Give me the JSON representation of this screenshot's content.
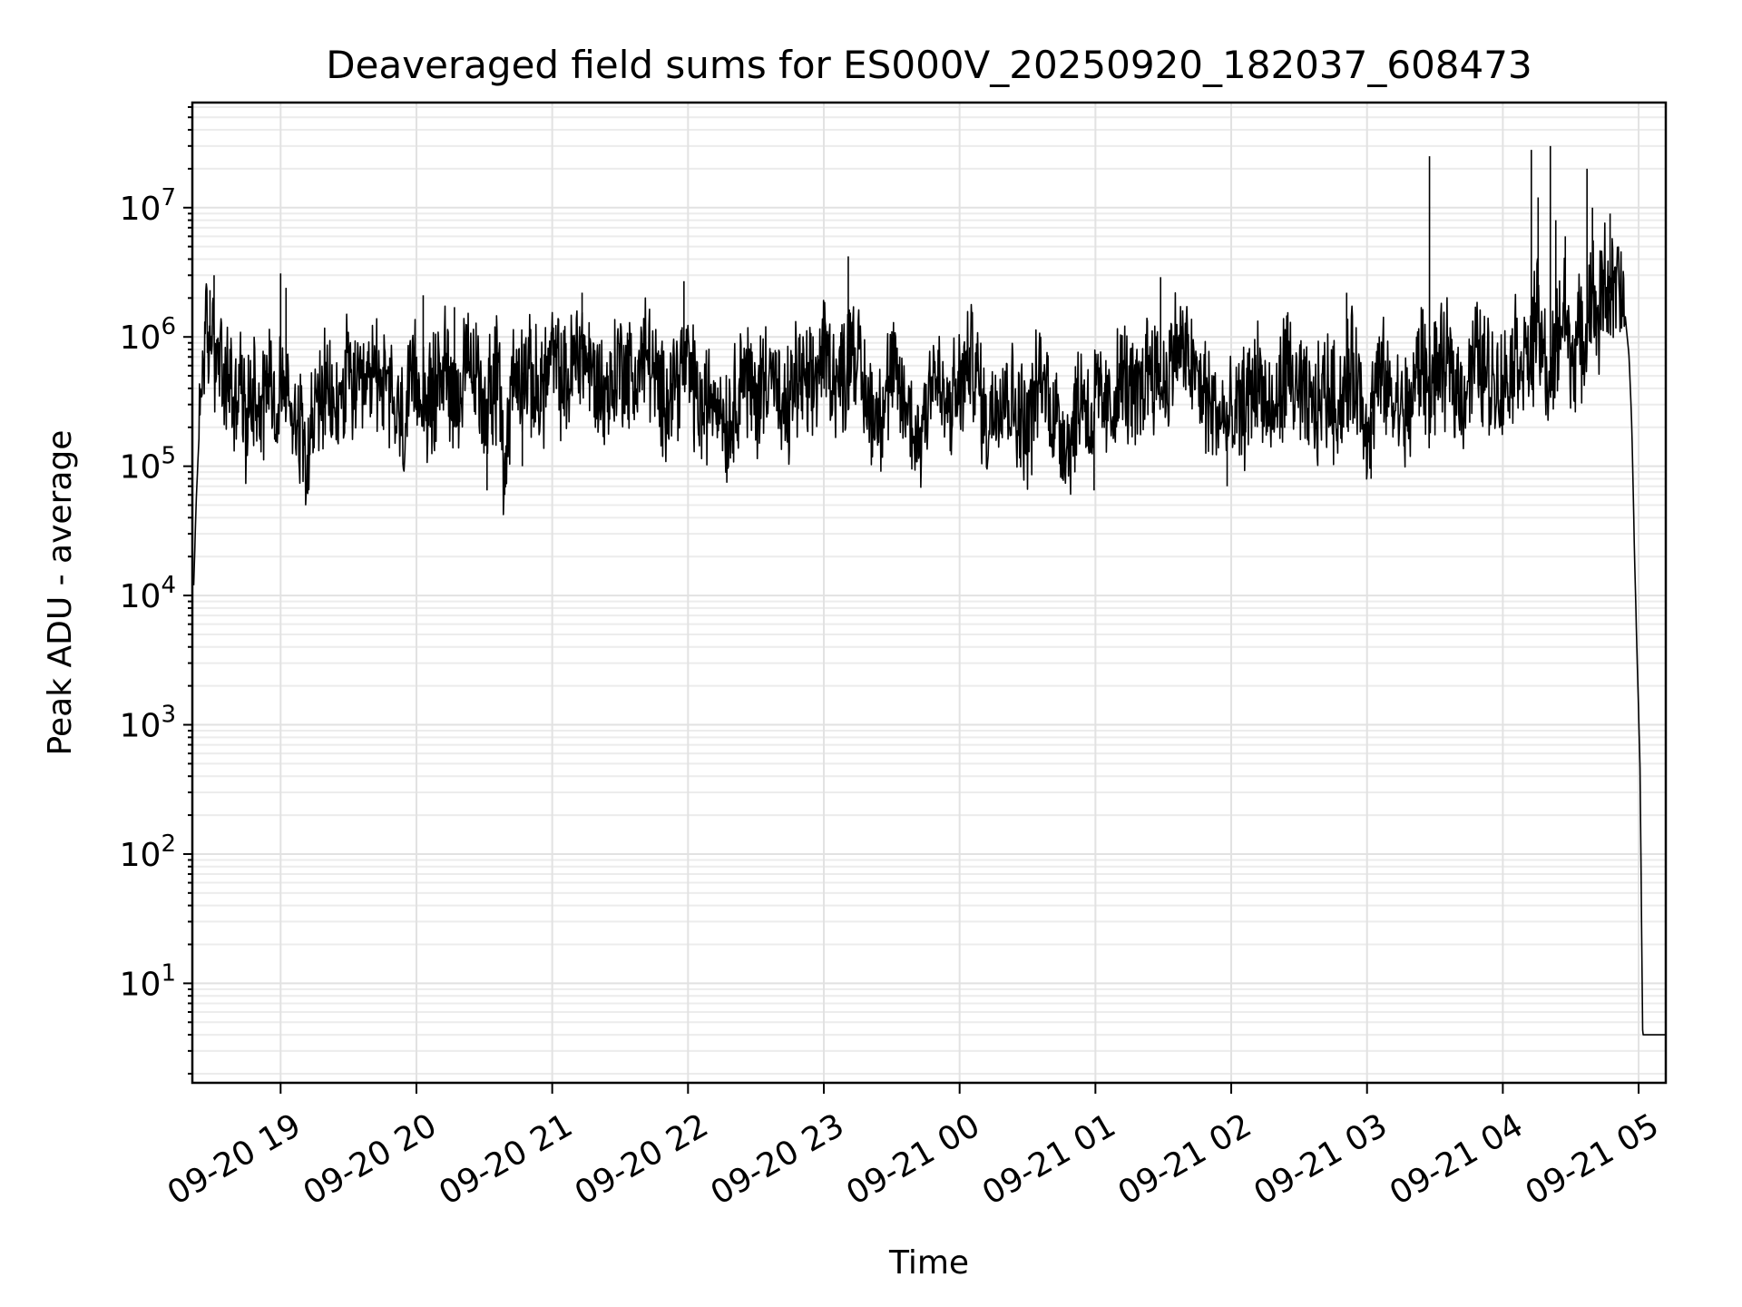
{
  "chart_data": {
    "type": "line",
    "title": "Deaveraged field sums for ES000V_20250920_182037_608473",
    "xlabel": "Time",
    "ylabel": "Peak ADU - average",
    "y_scale": "log",
    "ylim": [
      1.7,
      65000000
    ],
    "xlim": [
      18.35,
      29.2
    ],
    "x_ticks": [
      {
        "value": 19,
        "label": "09-20 19"
      },
      {
        "value": 20,
        "label": "09-20 20"
      },
      {
        "value": 21,
        "label": "09-20 21"
      },
      {
        "value": 22,
        "label": "09-20 22"
      },
      {
        "value": 23,
        "label": "09-20 23"
      },
      {
        "value": 24,
        "label": "09-21 00"
      },
      {
        "value": 25,
        "label": "09-21 01"
      },
      {
        "value": 26,
        "label": "09-21 02"
      },
      {
        "value": 27,
        "label": "09-21 03"
      },
      {
        "value": 28,
        "label": "09-21 04"
      },
      {
        "value": 29,
        "label": "09-21 05"
      }
    ],
    "y_ticks": [
      {
        "value": 10,
        "base": "10",
        "exp": "1"
      },
      {
        "value": 100,
        "base": "10",
        "exp": "2"
      },
      {
        "value": 1000,
        "base": "10",
        "exp": "3"
      },
      {
        "value": 10000,
        "base": "10",
        "exp": "4"
      },
      {
        "value": 100000,
        "base": "10",
        "exp": "5"
      },
      {
        "value": 1000000,
        "base": "10",
        "exp": "6"
      },
      {
        "value": 10000000,
        "base": "10",
        "exp": "7"
      }
    ],
    "grid": true,
    "series": [
      {
        "name": "deaveraged field sum",
        "color": "#000000",
        "x": [
          18.36,
          18.38,
          18.41,
          18.44,
          18.47,
          18.5,
          18.53,
          18.55,
          18.58,
          18.62,
          18.66,
          18.7,
          18.74,
          18.8,
          18.86,
          18.92,
          18.98,
          19.0,
          19.05,
          19.12,
          19.2,
          19.3,
          19.4,
          19.5,
          19.6,
          19.7,
          19.8,
          19.9,
          20.0,
          20.1,
          20.2,
          20.3,
          20.4,
          20.5,
          20.6,
          20.65,
          20.7,
          20.8,
          20.9,
          21.0,
          21.1,
          21.2,
          21.3,
          21.4,
          21.5,
          21.6,
          21.7,
          21.8,
          21.9,
          22.0,
          22.1,
          22.2,
          22.3,
          22.4,
          22.5,
          22.6,
          22.7,
          22.8,
          22.9,
          23.0,
          23.1,
          23.18,
          23.2,
          23.3,
          23.4,
          23.5,
          23.6,
          23.7,
          23.8,
          23.9,
          24.0,
          24.1,
          24.2,
          24.3,
          24.4,
          24.5,
          24.6,
          24.7,
          24.8,
          24.9,
          24.98,
          25.0,
          25.1,
          25.2,
          25.3,
          25.4,
          25.5,
          25.6,
          25.7,
          25.8,
          25.9,
          26.0,
          26.1,
          26.2,
          26.3,
          26.4,
          26.5,
          26.6,
          26.7,
          26.8,
          26.9,
          27.0,
          27.1,
          27.2,
          27.3,
          27.4,
          27.45,
          27.5,
          27.6,
          27.7,
          27.8,
          27.9,
          28.0,
          28.1,
          28.2,
          28.25,
          28.3,
          28.35,
          28.4,
          28.45,
          28.5,
          28.55,
          28.6,
          28.65,
          28.7,
          28.75,
          28.8,
          28.85,
          28.9,
          28.93,
          28.95,
          28.97,
          28.99,
          29.01,
          29.03,
          29.05,
          29.08,
          29.1,
          29.12,
          29.15,
          29.18,
          29.2
        ],
        "y": [
          12000,
          60000,
          300000,
          1200000,
          700000,
          1500000,
          500000,
          900000,
          300000,
          600000,
          250000,
          500000,
          200000,
          450000,
          300000,
          600000,
          200000,
          500000,
          350000,
          250000,
          150000,
          400000,
          250000,
          500000,
          300000,
          600000,
          350000,
          200000,
          500000,
          280000,
          650000,
          350000,
          600000,
          300000,
          500000,
          90000,
          450000,
          550000,
          350000,
          700000,
          400000,
          900000,
          500000,
          350000,
          650000,
          450000,
          800000,
          300000,
          500000,
          600000,
          250000,
          400000,
          200000,
          600000,
          300000,
          700000,
          200000,
          500000,
          350000,
          800000,
          450000,
          600000,
          1200000,
          350000,
          250000,
          500000,
          300000,
          150000,
          600000,
          250000,
          400000,
          700000,
          200000,
          450000,
          300000,
          200000,
          500000,
          250000,
          150000,
          400000,
          200000,
          350000,
          250000,
          500000,
          300000,
          700000,
          400000,
          900000,
          600000,
          350000,
          250000,
          200000,
          300000,
          500000,
          200000,
          600000,
          350000,
          250000,
          400000,
          300000,
          600000,
          200000,
          500000,
          300000,
          250000,
          700000,
          400000,
          500000,
          600000,
          350000,
          700000,
          500000,
          400000,
          800000,
          600000,
          1500000,
          700000,
          400000,
          900000,
          2000000,
          600000,
          1000000,
          800000,
          2500000,
          1200000,
          3000000,
          2000000,
          2500000,
          1500000,
          700000,
          200000,
          20000,
          3000,
          500,
          4,
          4,
          4,
          4,
          4,
          4,
          4,
          4
        ]
      }
    ],
    "spikes": [
      {
        "x": 18.48,
        "y": 2300000
      },
      {
        "x": 18.51,
        "y": 3000000
      },
      {
        "x": 19.0,
        "y": 3100000
      },
      {
        "x": 19.04,
        "y": 2400000
      },
      {
        "x": 20.05,
        "y": 2100000
      },
      {
        "x": 20.28,
        "y": 1700000
      },
      {
        "x": 21.22,
        "y": 2200000
      },
      {
        "x": 21.97,
        "y": 2700000
      },
      {
        "x": 23.18,
        "y": 4200000
      },
      {
        "x": 25.48,
        "y": 2900000
      },
      {
        "x": 26.85,
        "y": 2200000
      },
      {
        "x": 27.46,
        "y": 25000000
      },
      {
        "x": 28.21,
        "y": 28000000
      },
      {
        "x": 28.26,
        "y": 12000000
      },
      {
        "x": 28.35,
        "y": 30000000
      },
      {
        "x": 28.39,
        "y": 8000000
      },
      {
        "x": 28.46,
        "y": 6000000
      },
      {
        "x": 28.62,
        "y": 20000000
      },
      {
        "x": 28.66,
        "y": 10000000
      },
      {
        "x": 28.79,
        "y": 9000000
      }
    ],
    "dips": [
      {
        "x": 20.52,
        "y": 65000
      },
      {
        "x": 20.65,
        "y": 60000
      },
      {
        "x": 20.78,
        "y": 100000
      },
      {
        "x": 24.99,
        "y": 65000
      },
      {
        "x": 25.97,
        "y": 70000
      },
      {
        "x": 27.03,
        "y": 80000
      }
    ]
  }
}
